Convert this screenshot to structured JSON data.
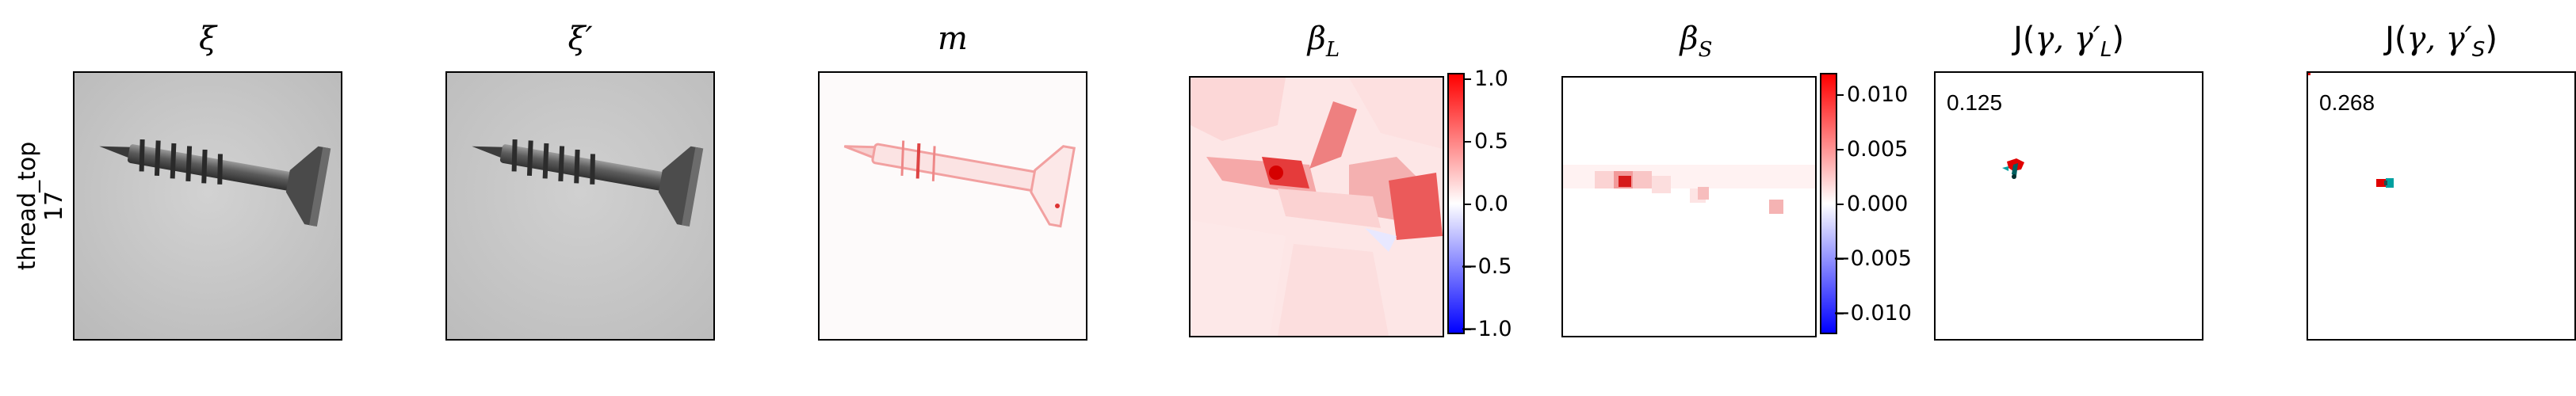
{
  "row_label": {
    "line1": "thread_top",
    "line2": "17"
  },
  "panels": {
    "xi": {
      "title": "ξ"
    },
    "xi_prime": {
      "title": "ξ′"
    },
    "m": {
      "title": "m"
    },
    "beta_L": {
      "title_main": "β",
      "title_sub": "L",
      "colorbar_ticks": [
        "1.0",
        "0.5",
        "0.0",
        "−0.5",
        "−1.0"
      ]
    },
    "beta_S": {
      "title_main": "β",
      "title_sub": "S",
      "colorbar_ticks": [
        "0.010",
        "0.005",
        "0.000",
        "−0.005",
        "−0.010"
      ]
    },
    "J_L": {
      "title_prefix": "J(",
      "title_gamma": "γ, γ′",
      "title_sub": "L",
      "title_suffix": ")",
      "score": "0.125"
    },
    "J_S": {
      "title_prefix": "J(",
      "title_gamma": "γ, γ′",
      "title_sub": "S",
      "title_suffix": ")",
      "score": "0.268"
    }
  },
  "colors": {
    "positive": "#ff0000",
    "zero": "#ffffff",
    "negative": "#0000ff",
    "overlay_cyan": "#00a0a0"
  }
}
